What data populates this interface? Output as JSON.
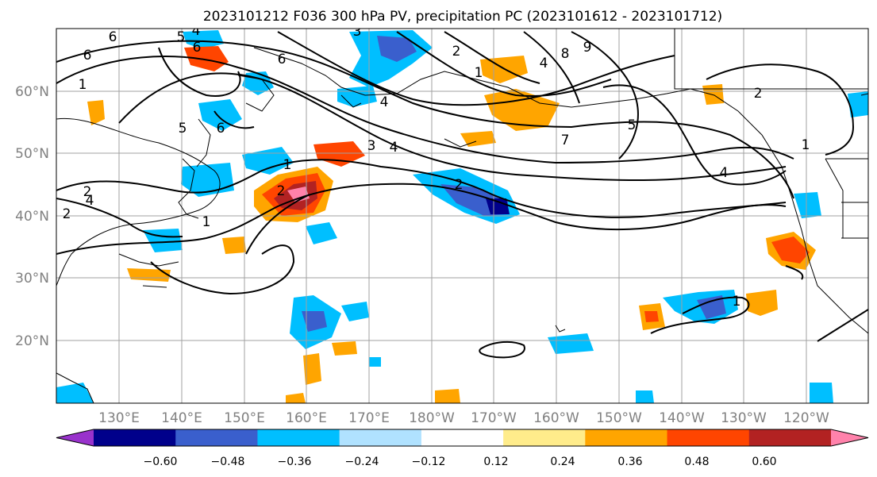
{
  "title": "2023101212 F036 300 hPa PV, precipitation PC (2023101612 - 2023101712)",
  "lat_labels": [
    "60°N",
    "50°N",
    "40°N",
    "30°N",
    "20°N"
  ],
  "lon_labels": [
    "130°E",
    "140°E",
    "150°E",
    "160°E",
    "170°E",
    "180°W",
    "170°W",
    "160°W",
    "150°W",
    "140°W",
    "130°W",
    "120°W"
  ],
  "colorbar": {
    "ticks": [
      "−0.60",
      "−0.48",
      "−0.36",
      "−0.24",
      "−0.12",
      "0.12",
      "0.24",
      "0.36",
      "0.48",
      "0.60"
    ],
    "colors": [
      "#9932cc",
      "#00008b",
      "#3a5fcd",
      "#00bfff",
      "#b0e2ff",
      "#ffffff",
      "#ffec8b",
      "#ffa500",
      "#ff4500",
      "#b22222",
      "#ff82ab"
    ]
  },
  "contour_labels": [
    "6",
    "5",
    "4",
    "3",
    "8",
    "9",
    "6",
    "1",
    "6",
    "2",
    "4",
    "5",
    "2",
    "4",
    "6",
    "3",
    "4",
    "1",
    "2",
    "2",
    "1",
    "6",
    "4",
    "1",
    "7",
    "5",
    "4",
    "1",
    "2",
    "2",
    "1"
  ]
}
